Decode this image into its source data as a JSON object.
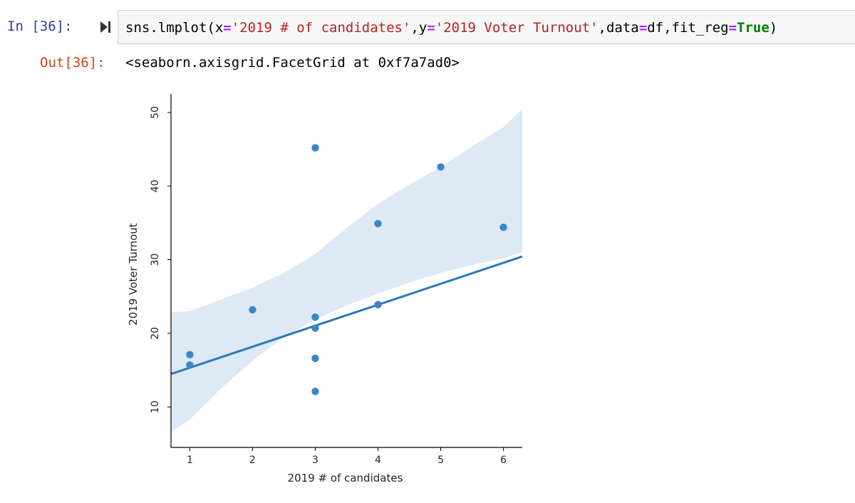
{
  "cell": {
    "in_prompt": "In [36]:",
    "out_prompt": "Out[36]:",
    "code": {
      "prefix": "sns.lmplot(x",
      "eq": "=",
      "x_str": "'2019 # of candidates'",
      "sep1": ",y",
      "y_str": "'2019 Voter Turnout'",
      "sep2": ",data",
      "data_val": "df,fit_reg",
      "true_kw": "True",
      "suffix": ")"
    },
    "output_text": "<seaborn.axisgrid.FacetGrid at 0xf7a7ad0>"
  },
  "icons": {
    "run": "run-cell-icon"
  },
  "colors": {
    "in_prompt": "#303f9f",
    "out_prompt": "#d84315",
    "string": "#ba2121",
    "operator": "#aa22ff",
    "keyword": "#008000",
    "point": "#3a86c8",
    "line": "#2a77be",
    "band": "#dde9f4"
  },
  "chart_data": {
    "type": "scatter",
    "title": "",
    "xlabel": "2019 # of candidates",
    "ylabel": "2019 Voter Turnout",
    "xlim": [
      0.7,
      6.3
    ],
    "ylim": [
      4.5,
      52.5
    ],
    "xticks": [
      1,
      2,
      3,
      4,
      5,
      6
    ],
    "yticks": [
      10,
      20,
      30,
      40,
      50
    ],
    "x": [
      1,
      1,
      2,
      3,
      3,
      3,
      3,
      3,
      4,
      4,
      5,
      6
    ],
    "y": [
      17.1,
      15.7,
      23.2,
      45.2,
      22.2,
      20.7,
      16.6,
      12.1,
      34.9,
      23.9,
      42.6,
      34.4
    ],
    "regression": {
      "slope": 2.85,
      "intercept": 12.48,
      "fit_reg": true
    },
    "ci_band": {
      "x": [
        0.7,
        1,
        1.5,
        2,
        2.5,
        3,
        3.5,
        4,
        4.5,
        5,
        5.5,
        6,
        6.3
      ],
      "lower": [
        6.6,
        8.3,
        12.5,
        16.3,
        19.5,
        21.9,
        23.8,
        25.4,
        26.9,
        28.2,
        29.3,
        30.2,
        31.0
      ],
      "upper": [
        22.9,
        23.0,
        24.6,
        26.2,
        28.2,
        30.8,
        34.3,
        37.6,
        40.2,
        42.6,
        45.4,
        48.0,
        50.5
      ]
    },
    "grid": false,
    "legend": "none"
  }
}
